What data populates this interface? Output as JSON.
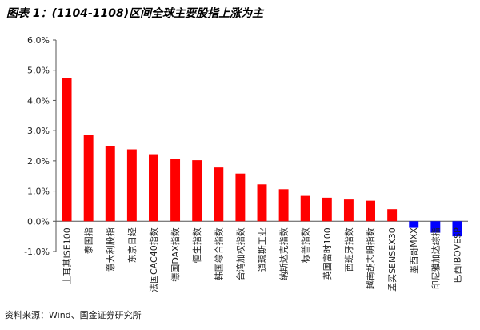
{
  "title": "图表 1：(1104-1108)区间全球主要股指上涨为主",
  "source": "资料来源：Wind、国金证券研究所",
  "chart_data": {
    "type": "bar",
    "categories": [
      "土耳其ISE100",
      "泰国指",
      "意大利股指",
      "东京日经",
      "法国CAC40指数",
      "德国DAX指数",
      "恒生指数",
      "韩国综合指数",
      "台湾加权指数",
      "道琼斯工业",
      "纳斯达克指数",
      "标普指数",
      "英国富时100",
      "西班牙指数",
      "越南胡志明指数",
      "孟买SENSEX30",
      "墨西哥MXX",
      "印尼雅加达综指",
      "巴西IBOVESP"
    ],
    "values": [
      4.75,
      2.85,
      2.5,
      2.38,
      2.22,
      2.05,
      2.02,
      1.78,
      1.58,
      1.22,
      1.06,
      0.84,
      0.78,
      0.72,
      0.68,
      0.4,
      -0.22,
      -0.38,
      -0.5
    ],
    "ylim": [
      -1.0,
      6.0
    ],
    "yticks": [
      "-1.0%",
      "0.0%",
      "1.0%",
      "2.0%",
      "3.0%",
      "4.0%",
      "5.0%",
      "6.0%"
    ],
    "colors": {
      "positive": "#ff0000",
      "negative": "#0000ff"
    },
    "grid": false,
    "legend": "none"
  }
}
